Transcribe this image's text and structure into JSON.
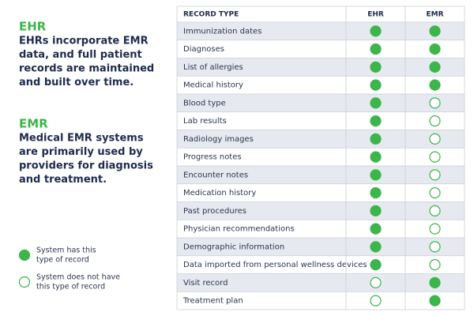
{
  "sections": [
    {
      "heading": "EHR",
      "lines": [
        "EHRs incorporate EMR",
        "data, and full patient",
        "records are maintained",
        "and built over time."
      ]
    },
    {
      "heading": "EMR",
      "lines": [
        "Medical EMR systems",
        "are primarily used by",
        "providers for diagnosis",
        "and treatment."
      ]
    }
  ],
  "legend": [
    {
      "filled": true,
      "lines": [
        "System has this",
        "type of record"
      ]
    },
    {
      "filled": false,
      "lines": [
        "System does not have",
        "this type of record"
      ]
    }
  ],
  "table": {
    "columns": [
      "RECORD TYPE",
      "EHR",
      "EMR"
    ],
    "rows": [
      [
        "Immunization dates",
        true,
        true
      ],
      [
        "Diagnoses",
        true,
        true
      ],
      [
        "List of allergies",
        true,
        true
      ],
      [
        "Medical history",
        true,
        true
      ],
      [
        "Blood type",
        true,
        false
      ],
      [
        "Lab results",
        true,
        false
      ],
      [
        "Radiology images",
        true,
        false
      ],
      [
        "Progress notes",
        true,
        false
      ],
      [
        "Encounter notes",
        true,
        false
      ],
      [
        "Medication history",
        true,
        false
      ],
      [
        "Past procedures",
        true,
        false
      ],
      [
        "Physician recommendations",
        true,
        false
      ],
      [
        "Demographic information",
        true,
        false
      ],
      [
        "Data imported from personal wellness devices",
        true,
        false
      ],
      [
        "Visit record",
        false,
        true
      ],
      [
        "Treatment plan",
        false,
        true
      ]
    ]
  }
}
